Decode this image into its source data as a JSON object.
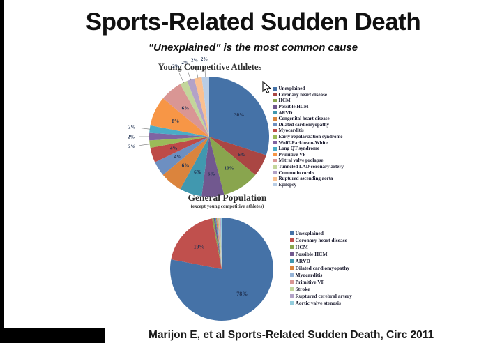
{
  "slide": {
    "title": "Sports-Related Sudden Death",
    "subtitle": "\"Unexplained\" is the most common cause",
    "citation": "Marijon E, et al Sports-Related Sudden Death, Circ 2011"
  },
  "style": {
    "background": "#ffffff",
    "letterbox": "#000000",
    "pie_label_color": "#1f3050"
  },
  "icons": {
    "cursor": "arrow-pointer-icon"
  },
  "chart_data": [
    {
      "type": "pie",
      "title": "Young Competitive Athletes",
      "legend_position": "right",
      "series": [
        {
          "name": "Unexplained",
          "value": 30,
          "label": "30%",
          "color": "#4572A7"
        },
        {
          "name": "Coronary heart disease",
          "value": 6,
          "label": "6%",
          "color": "#AA4643"
        },
        {
          "name": "HCM",
          "value": 10,
          "label": "10%",
          "color": "#89A54E"
        },
        {
          "name": "Possible HCM",
          "value": 6,
          "label": "6%",
          "color": "#71588F"
        },
        {
          "name": "ARVD",
          "value": 6,
          "label": "6%",
          "color": "#4198AF"
        },
        {
          "name": "Congenital heart disease",
          "value": 6,
          "label": "6%",
          "color": "#DB843D"
        },
        {
          "name": "Dilated cardiomyopathy",
          "value": 4,
          "label": "4%",
          "color": "#6D8FC1"
        },
        {
          "name": "Myocarditis",
          "value": 4,
          "label": "4%",
          "color": "#BE4B48"
        },
        {
          "name": "Early repolarization syndrome",
          "value": 2,
          "label": "2%",
          "color": "#9BBB59"
        },
        {
          "name": "Wolff-Parkinson-White",
          "value": 2,
          "label": "2%",
          "color": "#8064A2"
        },
        {
          "name": "Long QT syndrome",
          "value": 2,
          "label": "2%",
          "color": "#4BACC6"
        },
        {
          "name": "Primitive VF",
          "value": 8,
          "label": "8%",
          "color": "#F79646"
        },
        {
          "name": "Mitral valve prolapse",
          "value": 6,
          "label": "6%",
          "color": "#D99694"
        },
        {
          "name": "Tunneled LAD coronary artery",
          "value": 2,
          "label": "2%",
          "color": "#C3D69B"
        },
        {
          "name": "Commotio cordis",
          "value": 2,
          "label": "2%",
          "color": "#B3A2C7"
        },
        {
          "name": "Ruptured ascending aorta",
          "value": 2,
          "label": "2%",
          "color": "#FAC090"
        },
        {
          "name": "Epilepsy",
          "value": 2,
          "label": "2%",
          "color": "#B9CDE5"
        }
      ]
    },
    {
      "type": "pie",
      "title": "General Population",
      "subtitle": "(except young competitive athletes)",
      "legend_position": "right",
      "series": [
        {
          "name": "Unexplained",
          "value": 78,
          "label": "78%",
          "color": "#4572A7"
        },
        {
          "name": "Coronary heart disease",
          "value": 19,
          "label": "19%",
          "color": "#C0504D"
        },
        {
          "name": "HCM",
          "value": 0.5,
          "label": "",
          "color": "#89A54E"
        },
        {
          "name": "Possible HCM",
          "value": 0.5,
          "label": "",
          "color": "#71588F"
        },
        {
          "name": "ARVD",
          "value": 0.25,
          "label": "",
          "color": "#4198AF"
        },
        {
          "name": "Dilated cardiomyopathy",
          "value": 0.25,
          "label": "",
          "color": "#DB843D"
        },
        {
          "name": "Myocarditis",
          "value": 0.25,
          "label": "",
          "color": "#95B3D7"
        },
        {
          "name": "Primitive VF",
          "value": 0.25,
          "label": "",
          "color": "#D99694"
        },
        {
          "name": "Stroke",
          "value": 0.5,
          "label": "",
          "color": "#C3D69B"
        },
        {
          "name": "Ruptured cerebral artery",
          "value": 0.25,
          "label": "",
          "color": "#B3A2C7"
        },
        {
          "name": "Aortic valve stenosis",
          "value": 0.25,
          "label": "",
          "color": "#93CDDD"
        }
      ]
    }
  ]
}
